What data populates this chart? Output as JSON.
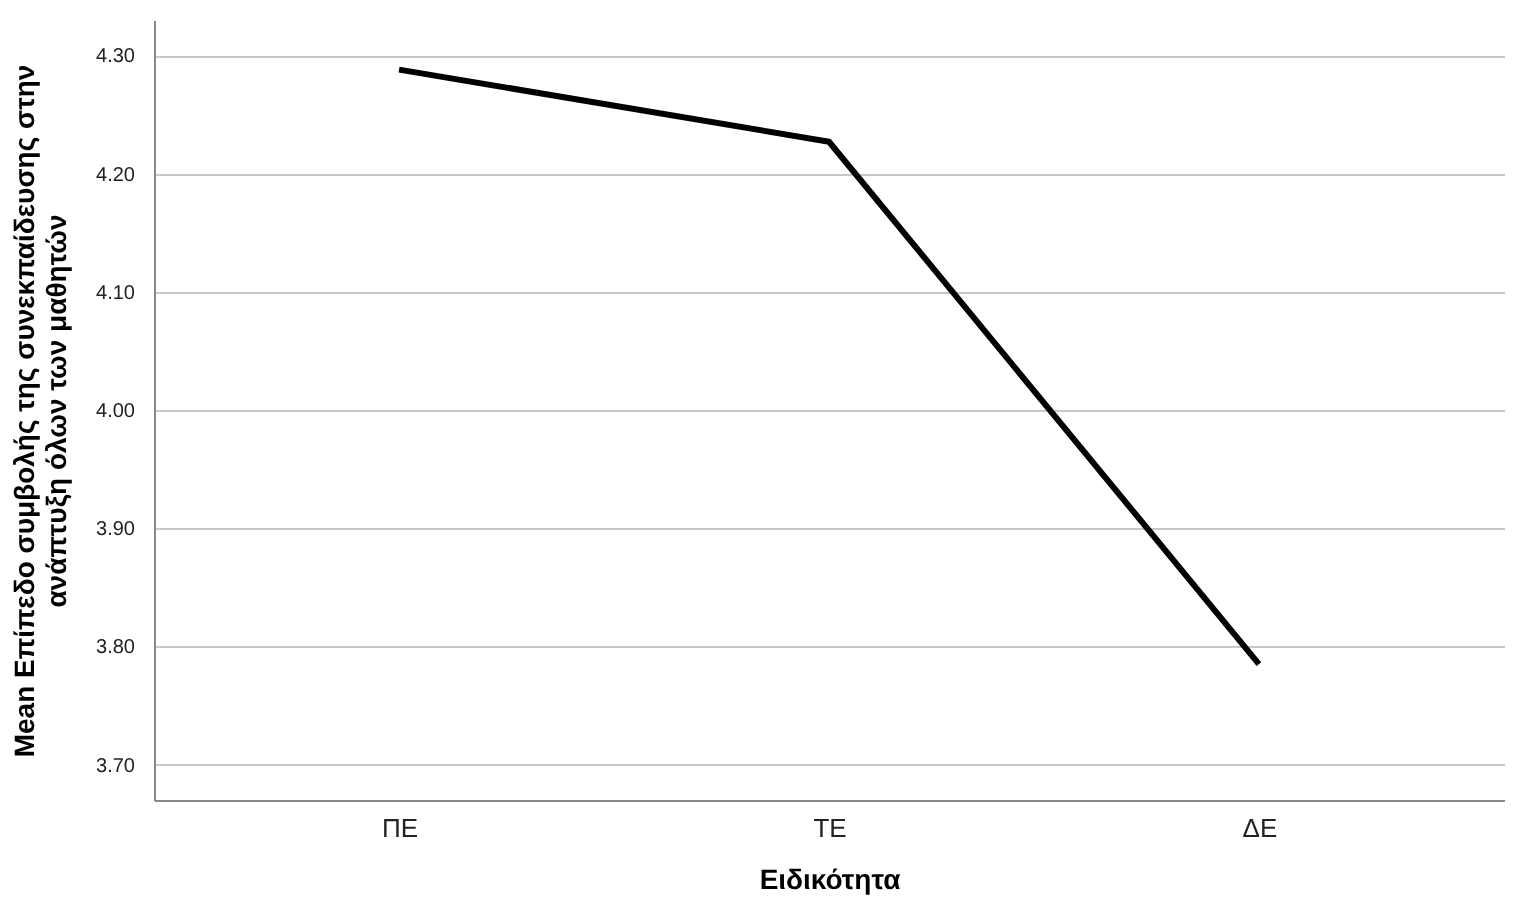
{
  "chart_data": {
    "type": "line",
    "xlabel": "Ειδικότητα",
    "ylabel": "Mean Επίπεδο συμβολής της συνεκπαίδευσης στην ανάπτυξη όλων των μαθητών",
    "categories": [
      "ΠΕ",
      "ΤΕ",
      "ΔΕ"
    ],
    "series": [
      {
        "color": "#000000",
        "values": [
          4.288,
          4.227,
          3.785
        ]
      }
    ],
    "ylim": [
      3.67,
      4.33
    ],
    "yticks": [
      {
        "value": 3.7,
        "label": "3.70"
      },
      {
        "value": 3.8,
        "label": "3.80"
      },
      {
        "value": 3.9,
        "label": "3.90"
      },
      {
        "value": 4.0,
        "label": "4.00"
      },
      {
        "value": 4.1,
        "label": "4.10"
      },
      {
        "value": 4.2,
        "label": "4.20"
      },
      {
        "value": 4.3,
        "label": "4.30"
      }
    ],
    "grid": "y",
    "marker": "none",
    "line_style": "solid"
  }
}
